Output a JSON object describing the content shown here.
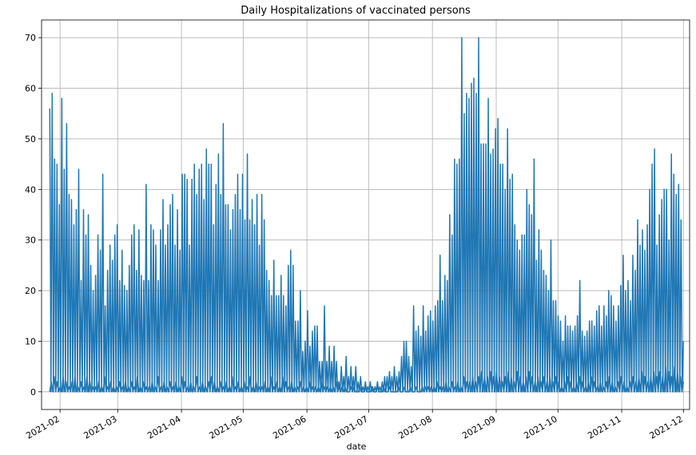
{
  "chart_data": {
    "type": "line",
    "title": "Daily Hospitalizations of vaccinated persons",
    "xlabel": "date",
    "ylabel": "",
    "xlim": [
      "2021-01-23",
      "2021-12-04"
    ],
    "ylim": [
      -3.5,
      73.5
    ],
    "grid": true,
    "x_ticks": [
      "2021-02",
      "2021-03",
      "2021-04",
      "2021-05",
      "2021-06",
      "2021-07",
      "2021-08",
      "2021-09",
      "2021-10",
      "2021-11",
      "2021-12"
    ],
    "y_ticks": [
      0,
      10,
      20,
      30,
      40,
      50,
      60,
      70
    ],
    "series": [
      {
        "color": "#1f77b4",
        "x_start": "2021-01-27",
        "note_sampling": "one value per day",
        "values": [
          56,
          0,
          59,
          0,
          46,
          0,
          45,
          0,
          37,
          0,
          58,
          0,
          44,
          0,
          53,
          0,
          39,
          0,
          38,
          0,
          33,
          0,
          36,
          0,
          44,
          0,
          22,
          0,
          36,
          0,
          31,
          0,
          35,
          0,
          25,
          0,
          20,
          0,
          23,
          0,
          31,
          0,
          28,
          0,
          43,
          0,
          17,
          0,
          24,
          0,
          29,
          0,
          26,
          0,
          31,
          0,
          33,
          0,
          22,
          0,
          28,
          0,
          21,
          0,
          20,
          0,
          25,
          0,
          31,
          0,
          33,
          0,
          24,
          0,
          32,
          0,
          23,
          0,
          22,
          0,
          41,
          0,
          22,
          0,
          33,
          0,
          32,
          0,
          29,
          0,
          22,
          0,
          32,
          0,
          38,
          0,
          29,
          0,
          33,
          0,
          37,
          0,
          39,
          0,
          29,
          0,
          36,
          0,
          28,
          0,
          43,
          0,
          43,
          0,
          42,
          0,
          29,
          0,
          42,
          0,
          45,
          0,
          39,
          0,
          44,
          0,
          45,
          0,
          38,
          0,
          48,
          0,
          45,
          0,
          45,
          0,
          33,
          0,
          41,
          0,
          47,
          0,
          39,
          0,
          53,
          0,
          37,
          0,
          37,
          0,
          32,
          0,
          36,
          0,
          39,
          0,
          43,
          0,
          36,
          0,
          43,
          0,
          34,
          0,
          47,
          0,
          34,
          0,
          38,
          0,
          33,
          0,
          39,
          0,
          29,
          0,
          39,
          0,
          34,
          0,
          24,
          0,
          22,
          0,
          19,
          0,
          26,
          0,
          19,
          0,
          19,
          0,
          23,
          0,
          19,
          0,
          17,
          0,
          25,
          0,
          28,
          0,
          25,
          0,
          14,
          0,
          14,
          0,
          20,
          0,
          8,
          0,
          10,
          0,
          16,
          0,
          9,
          0,
          12,
          0,
          13,
          0,
          13,
          0,
          6,
          0,
          6,
          0,
          17,
          0,
          6,
          0,
          9,
          0,
          6,
          0,
          9,
          0,
          6,
          0,
          2,
          0,
          5,
          0,
          3,
          0,
          7,
          0,
          3,
          0,
          5,
          0,
          3,
          0,
          5,
          0,
          2,
          0,
          3,
          0,
          1,
          0,
          2,
          0,
          1,
          0,
          2,
          0,
          1,
          0,
          1,
          0,
          2,
          0,
          1,
          0,
          2,
          0,
          3,
          0,
          3,
          0,
          4,
          0,
          3,
          0,
          5,
          0,
          3,
          0,
          4,
          0,
          7,
          0,
          10,
          0,
          10,
          0,
          7,
          0,
          5,
          0,
          17,
          0,
          12,
          0,
          13,
          0,
          11,
          0,
          17,
          0,
          12,
          0,
          15,
          0,
          16,
          0,
          14,
          0,
          17,
          0,
          18,
          0,
          27,
          0,
          18,
          0,
          23,
          0,
          22,
          0,
          35,
          0,
          31,
          0,
          46,
          0,
          45,
          0,
          46,
          0,
          70,
          0,
          55,
          0,
          59,
          0,
          58,
          0,
          61,
          0,
          62,
          0,
          59,
          0,
          70,
          0,
          49,
          0,
          49,
          0,
          49,
          0,
          58,
          0,
          47,
          0,
          48,
          0,
          52,
          0,
          54,
          0,
          45,
          0,
          45,
          0,
          40,
          0,
          52,
          0,
          42,
          0,
          43,
          0,
          33,
          0,
          30,
          0,
          28,
          0,
          31,
          0,
          31,
          0,
          40,
          0,
          37,
          0,
          35,
          0,
          46,
          0,
          26,
          0,
          32,
          0,
          28,
          0,
          24,
          0,
          23,
          0,
          20,
          0,
          30,
          0,
          18,
          0,
          18,
          0,
          15,
          0,
          14,
          0,
          10,
          0,
          15,
          0,
          13,
          0,
          13,
          0,
          12,
          0,
          13,
          0,
          15,
          0,
          22,
          0,
          12,
          0,
          11,
          0,
          12,
          0,
          14,
          0,
          14,
          0,
          13,
          0,
          16,
          0,
          17,
          0,
          13,
          0,
          17,
          0,
          15,
          0,
          20,
          0,
          19,
          0,
          17,
          0,
          14,
          0,
          17,
          0,
          21,
          0,
          27,
          0,
          20,
          0,
          22,
          0,
          18,
          0,
          27,
          0,
          24,
          0,
          34,
          0,
          29,
          0,
          32,
          0,
          28,
          0,
          33,
          0,
          40,
          0,
          45,
          0,
          48,
          0,
          29,
          0,
          35,
          0,
          38,
          0,
          40,
          0,
          40,
          0,
          30,
          0,
          47,
          0,
          43,
          0,
          39,
          0,
          41,
          0,
          34,
          0,
          10
        ]
      },
      {
        "color": "#1f77b4",
        "x_start": "2021-01-27",
        "note_sampling": "minor daily component visible near baseline",
        "values": [
          0,
          2,
          0,
          3,
          0,
          2,
          0,
          1,
          0,
          3,
          0,
          2,
          0,
          1,
          0,
          2,
          0,
          3,
          0,
          1,
          0,
          2,
          0,
          1,
          0,
          3,
          0,
          2,
          0,
          1,
          0,
          1,
          0,
          2,
          0,
          1,
          0,
          3,
          0,
          1,
          0,
          2,
          0,
          1,
          0,
          1,
          0,
          2,
          0,
          1,
          0,
          2,
          0,
          1,
          0,
          2,
          0,
          1,
          0,
          3,
          0,
          1,
          0,
          2,
          0,
          1,
          0,
          1,
          0,
          2,
          0,
          1,
          0,
          3,
          0,
          1,
          0,
          2,
          0,
          1,
          0,
          2,
          0,
          1,
          0,
          2,
          0,
          1,
          0,
          3,
          0,
          2,
          0,
          1,
          0,
          2,
          0,
          1,
          0,
          3,
          0,
          1,
          0,
          2,
          0,
          1,
          0,
          2,
          0,
          3,
          0,
          2,
          0,
          1,
          0,
          2,
          0,
          1,
          0,
          2,
          0,
          1,
          0,
          3,
          0,
          1,
          0,
          2,
          0,
          1,
          0,
          2,
          0,
          1,
          0,
          3,
          0,
          1,
          0,
          2,
          0,
          1,
          0,
          1,
          0,
          2,
          0,
          1,
          0,
          3,
          0,
          1,
          0,
          2,
          0,
          1,
          0,
          3,
          0,
          2,
          0,
          1,
          0,
          2,
          0,
          1,
          0,
          1,
          0,
          2,
          0,
          1,
          0,
          1,
          0,
          2,
          0,
          1,
          0,
          1,
          0,
          1,
          0,
          2,
          0,
          1,
          0,
          1,
          0,
          1,
          0,
          1,
          0,
          2,
          0,
          1,
          0,
          1,
          0,
          1,
          0,
          0,
          0,
          1,
          0,
          1,
          0,
          0,
          0,
          1,
          0,
          0,
          0,
          1,
          0,
          0,
          0,
          1,
          0,
          0,
          0,
          1,
          0,
          0,
          0,
          1,
          0,
          0,
          0,
          1,
          0,
          0,
          0,
          0,
          0,
          1,
          0,
          0,
          0,
          1,
          0,
          0,
          0,
          1,
          0,
          0,
          0,
          1,
          0,
          0,
          0,
          1,
          0,
          1,
          0,
          1,
          0,
          1,
          0,
          1,
          0,
          2,
          0,
          1,
          0,
          1,
          0,
          2,
          0,
          1,
          0,
          2,
          0,
          1,
          0,
          2,
          0,
          1,
          0,
          3,
          0,
          2,
          0,
          2,
          0,
          3,
          0,
          2,
          0,
          3,
          0,
          4,
          0,
          3,
          0,
          3,
          0,
          4,
          0,
          3,
          0,
          4,
          0,
          3,
          0,
          2,
          0,
          3,
          0,
          4,
          0,
          3,
          0,
          2,
          0,
          4,
          0,
          3,
          0,
          2,
          0,
          3,
          0,
          4,
          0,
          3,
          0,
          2,
          0,
          3,
          0,
          2,
          0,
          3,
          0,
          2,
          0,
          3,
          0,
          2,
          0,
          3,
          0,
          2,
          0,
          1,
          0,
          2,
          0,
          3,
          0,
          2,
          0,
          1,
          0,
          2,
          0,
          3,
          0,
          2,
          0,
          1,
          0,
          2,
          0,
          3,
          0,
          2,
          0,
          1,
          0,
          2,
          0,
          1,
          0,
          2,
          0,
          3,
          0,
          2,
          0,
          1,
          0,
          2,
          0,
          3,
          0,
          2,
          0,
          1,
          0,
          2,
          0,
          3,
          0,
          2,
          0,
          3,
          0,
          4,
          0,
          3,
          0,
          2,
          0,
          3,
          0,
          4,
          0,
          3,
          0,
          4,
          0,
          3,
          0,
          5,
          0,
          4,
          0,
          3,
          0,
          5,
          0,
          4,
          0,
          3,
          0,
          2
        ]
      }
    ]
  }
}
